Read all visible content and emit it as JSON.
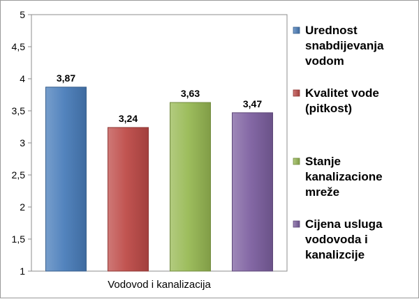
{
  "chart_data": {
    "type": "bar",
    "title": "",
    "xlabel": "",
    "ylabel": "",
    "categories": [
      "Vodovod i kanalizacija"
    ],
    "series": [
      {
        "name": "Urednost snabdijevanja vodom",
        "legend_lines": [
          "Urednost",
          "snabdijevanja",
          "vodom"
        ],
        "values": [
          3.87
        ],
        "value_label": "3,87",
        "color": "#4a7ebb"
      },
      {
        "name": "Kvalitet vode (pitkost)",
        "legend_lines": [
          "Kvalitet vode",
          "(pitkost)"
        ],
        "values": [
          3.24
        ],
        "value_label": "3,24",
        "color": "#be4b48"
      },
      {
        "name": "Stanje kanalizacione mreže",
        "legend_lines": [
          "Stanje",
          "kanalizacione",
          "mreže"
        ],
        "values": [
          3.63
        ],
        "value_label": "3,63",
        "color": "#98b954"
      },
      {
        "name": "Cijena usluga vodovoda i kanalizcije",
        "legend_lines": [
          "Cijena usluga",
          "vodovoda i",
          "kanalizcije"
        ],
        "values": [
          3.47
        ],
        "value_label": "3,47",
        "color": "#7d60a0"
      }
    ],
    "ylim": [
      1,
      5
    ],
    "yticks": [
      1,
      1.5,
      2,
      2.5,
      3,
      3.5,
      4,
      4.5,
      5
    ],
    "ytick_labels": [
      "1",
      "1,5",
      "2",
      "2,5",
      "3",
      "3,5",
      "4",
      "4,5",
      "5"
    ],
    "grid": false,
    "legend_position": "right"
  }
}
